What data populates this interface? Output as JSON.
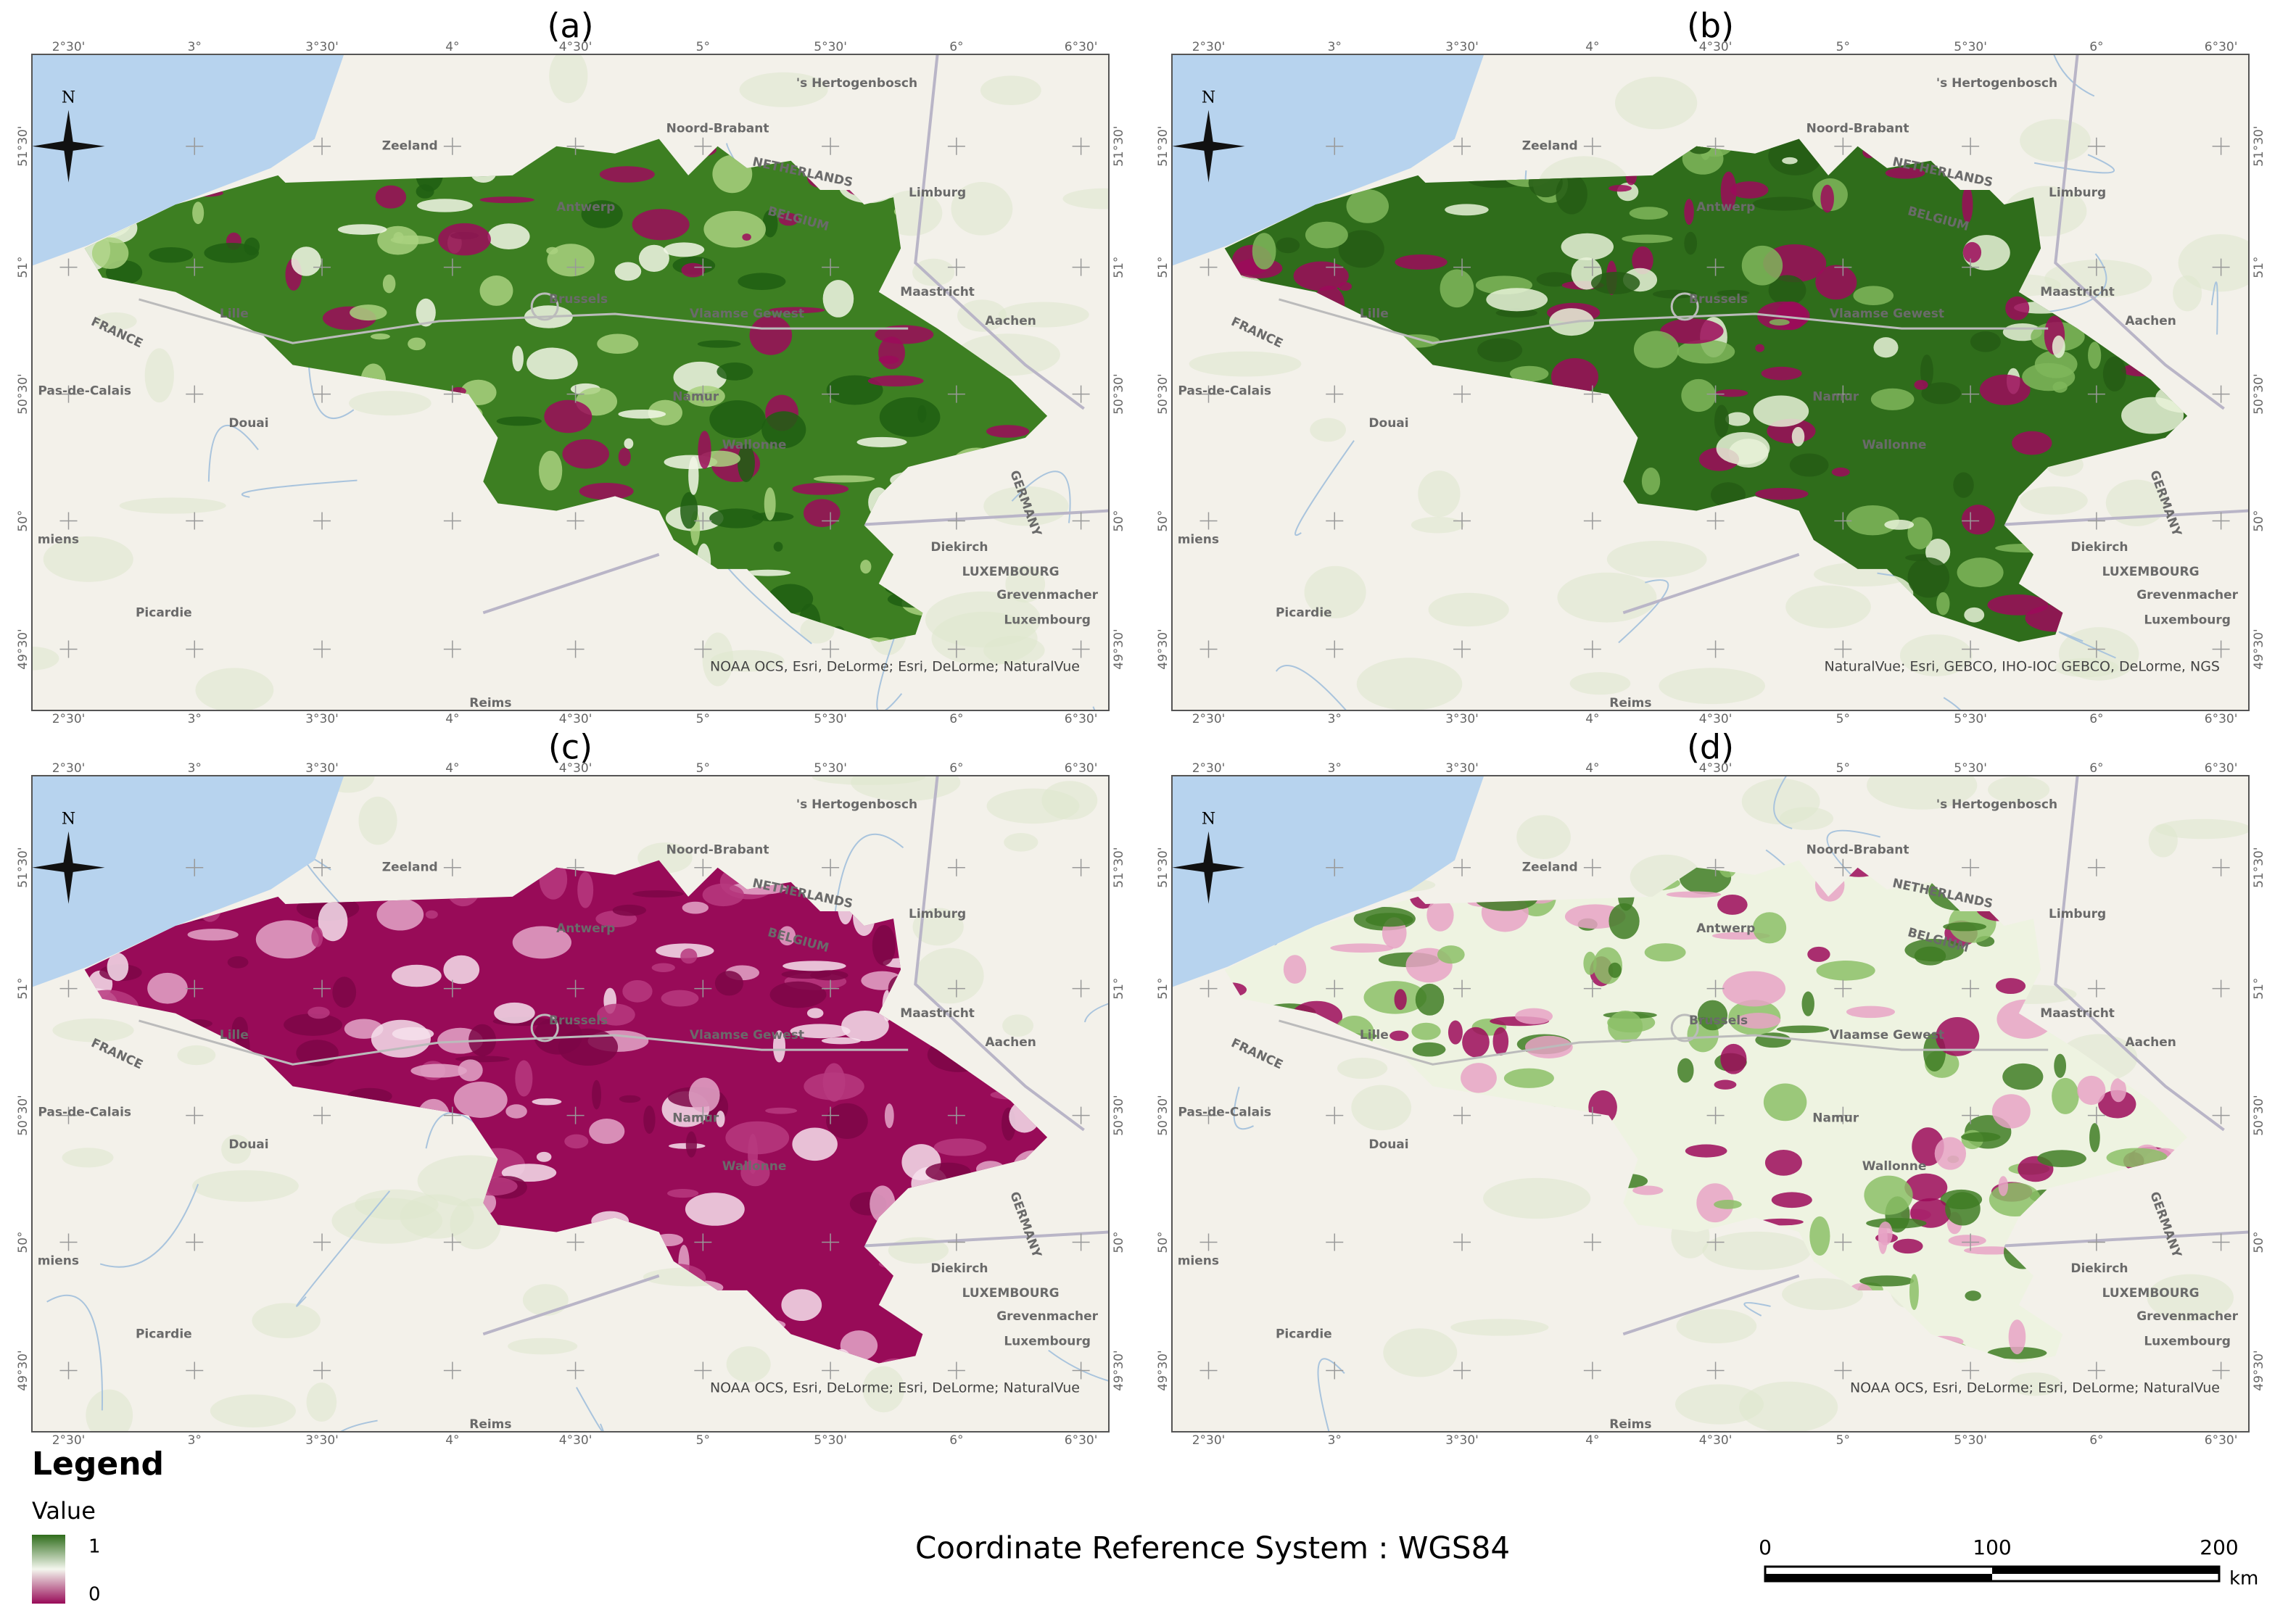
{
  "panels": [
    {
      "label": "(a)",
      "attribution": "NOAA OCS, Esri, DeLorme; Esri, DeLorme; NaturalVue",
      "fill": "#3d7f22",
      "patches": [
        "#f2f7e6",
        "#a9d17f",
        "#9c0a5a",
        "#1f5e12"
      ]
    },
    {
      "label": "(b)",
      "attribution": "NaturalVue; Esri, GEBCO, IHO-IOC GEBCO, DeLorme, NGS",
      "fill": "#2f6d1b",
      "patches": [
        "#9c0a5a",
        "#7fb65a",
        "#e8f2d8",
        "#245c14"
      ]
    },
    {
      "label": "(c)",
      "attribution": "NOAA OCS, Esri, DeLorme; Esri, DeLorme; NaturalVue",
      "fill": "#980b58",
      "patches": [
        "#e3a6c8",
        "#f6e0ec",
        "#b73a7f",
        "#7d0646"
      ]
    },
    {
      "label": "(d)",
      "attribution": "NOAA OCS, Esri, DeLorme; Esri, DeLorme; NaturalVue",
      "fill": "#eef3e1",
      "patches": [
        "#9c0a5a",
        "#e7a3c6",
        "#8cc067",
        "#3f7d24"
      ]
    }
  ],
  "longitudes": [
    "2°30'",
    "3°",
    "3°30'",
    "4°",
    "4°30'",
    "5°",
    "5°30'",
    "6°",
    "6°30'"
  ],
  "latitudes": [
    "51°30'",
    "51°",
    "50°30'",
    "50°",
    "49°30'"
  ],
  "places": [
    "'s Hertogenbosch",
    "Noord-Brabant",
    "Zeeland",
    "NETHERLANDS",
    "Limburg",
    "Antwerp",
    "BELGIUM",
    "Brussels",
    "Vlaamse Gewest",
    "Maastricht",
    "Aachen",
    "Lille",
    "Pas-de-Calais",
    "Douai",
    "Namur",
    "Wallonne",
    "GERMANY",
    "Diekirch",
    "LUXEMBOURG",
    "Grevenmacher",
    "Luxembourg",
    "Picardie",
    "Reims",
    "FRANCE",
    "miens"
  ],
  "north": "N",
  "legend": {
    "title": "Legend",
    "field": "Value",
    "max": 1,
    "min": 0,
    "colors": [
      "#2f6d1b",
      "#f4f7ee",
      "#980b58"
    ]
  },
  "crs": "Coordinate Reference System : WGS84",
  "scale_bar": {
    "ticks": [
      0,
      100,
      200
    ],
    "unit": "km"
  }
}
